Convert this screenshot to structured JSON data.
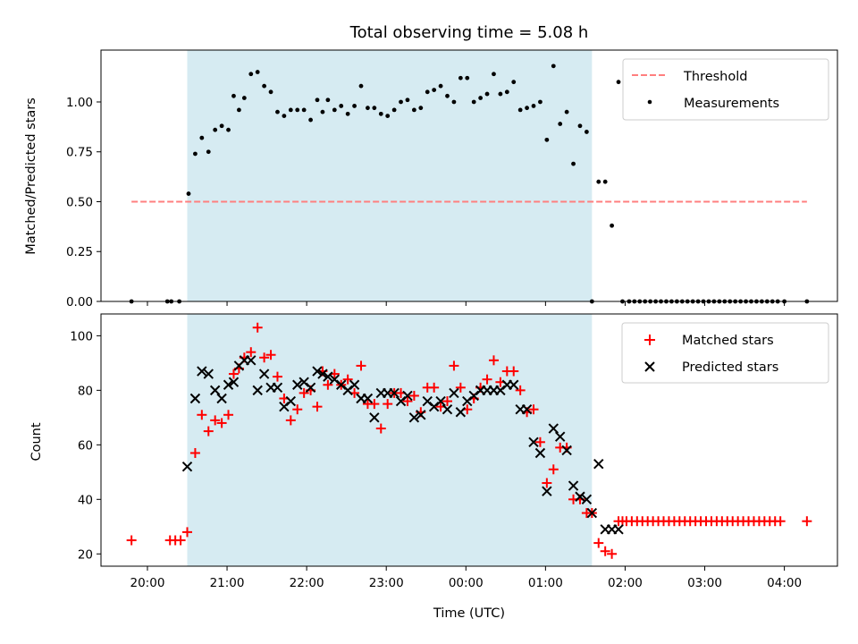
{
  "colors": {
    "observing_window": "#add8e6",
    "threshold": "#ff7f7f",
    "measurements": "#000000",
    "matched": "#ff0000",
    "predicted": "#000000"
  },
  "chart_data": [
    {
      "type": "scatter",
      "title": "Total observing time = 5.08 h",
      "xlabel": "",
      "ylabel": "Matched/Predicted stars",
      "xlim": [
        "19:25",
        "04:40"
      ],
      "ylim": [
        0,
        1.26
      ],
      "yticks": [
        0.0,
        0.25,
        0.5,
        0.75,
        1.0
      ],
      "ytick_labels": [
        "0.00",
        "0.25",
        "0.50",
        "0.75",
        "1.00"
      ],
      "observing_window": [
        "20:30",
        "01:35"
      ],
      "grid": false,
      "legend_position": "upper right",
      "threshold": {
        "name": "Threshold",
        "value": 0.5,
        "x_range": [
          "19:48",
          "04:17"
        ],
        "style": "dashed"
      },
      "series": [
        {
          "name": "Measurements",
          "x": [
            "19:48",
            "20:15",
            "20:18",
            "20:24",
            "20:31",
            "20:36",
            "20:41",
            "20:46",
            "20:51",
            "20:56",
            "21:01",
            "21:05",
            "21:09",
            "21:13",
            "21:18",
            "21:23",
            "21:28",
            "21:33",
            "21:38",
            "21:43",
            "21:48",
            "21:53",
            "21:58",
            "22:03",
            "22:08",
            "22:12",
            "22:16",
            "22:21",
            "22:26",
            "22:31",
            "22:36",
            "22:41",
            "22:46",
            "22:51",
            "22:56",
            "23:01",
            "23:06",
            "23:11",
            "23:16",
            "23:21",
            "23:26",
            "23:31",
            "23:36",
            "23:41",
            "23:46",
            "23:51",
            "23:56",
            "00:01",
            "00:06",
            "00:11",
            "00:16",
            "00:21",
            "00:26",
            "00:31",
            "00:36",
            "00:41",
            "00:46",
            "00:51",
            "00:56",
            "01:01",
            "01:06",
            "01:11",
            "01:16",
            "01:21",
            "01:26",
            "01:31",
            "01:35",
            "01:40",
            "01:45",
            "01:50",
            "01:55",
            "01:58",
            "02:03",
            "02:07",
            "02:11",
            "02:15",
            "02:19",
            "02:23",
            "02:27",
            "02:31",
            "02:35",
            "02:39",
            "02:43",
            "02:47",
            "02:51",
            "02:55",
            "02:59",
            "03:03",
            "03:07",
            "03:11",
            "03:15",
            "03:19",
            "03:23",
            "03:27",
            "03:31",
            "03:35",
            "03:39",
            "03:43",
            "03:47",
            "03:51",
            "03:55",
            "04:00",
            "04:17"
          ],
          "y": [
            0.0,
            0.0,
            0.0,
            0.0,
            0.54,
            0.74,
            0.82,
            0.75,
            0.86,
            0.88,
            0.86,
            1.03,
            0.96,
            1.02,
            1.14,
            1.15,
            1.08,
            1.05,
            0.95,
            0.93,
            0.96,
            0.96,
            0.96,
            0.91,
            1.01,
            0.95,
            1.01,
            0.96,
            0.98,
            0.94,
            0.98,
            1.08,
            0.97,
            0.97,
            0.94,
            0.93,
            0.96,
            1.0,
            1.01,
            0.96,
            0.97,
            1.05,
            1.06,
            1.08,
            1.03,
            1.0,
            1.12,
            1.12,
            1.0,
            1.02,
            1.04,
            1.14,
            1.04,
            1.05,
            1.1,
            0.96,
            0.97,
            0.98,
            1.0,
            0.81,
            1.18,
            0.89,
            0.95,
            0.69,
            0.88,
            0.85,
            0.0,
            0.6,
            0.6,
            0.38,
            1.1,
            0.0,
            0.0,
            0.0,
            0.0,
            0.0,
            0.0,
            0.0,
            0.0,
            0.0,
            0.0,
            0.0,
            0.0,
            0.0,
            0.0,
            0.0,
            0.0,
            0.0,
            0.0,
            0.0,
            0.0,
            0.0,
            0.0,
            0.0,
            0.0,
            0.0,
            0.0,
            0.0,
            0.0,
            0.0,
            0.0,
            0.0,
            0.0
          ]
        }
      ]
    },
    {
      "type": "scatter",
      "title": "",
      "xlabel": "Time (UTC)",
      "ylabel": "Count",
      "xlim": [
        "19:25",
        "04:40"
      ],
      "ylim": [
        15.5,
        108
      ],
      "xticks": [
        "20:00",
        "21:00",
        "22:00",
        "23:00",
        "00:00",
        "01:00",
        "02:00",
        "03:00",
        "04:00"
      ],
      "yticks": [
        20,
        40,
        60,
        80,
        100
      ],
      "observing_window": [
        "20:30",
        "01:35"
      ],
      "grid": false,
      "legend_position": "upper right",
      "series": [
        {
          "name": "Matched stars",
          "marker": "+",
          "x": [
            "19:48",
            "20:17",
            "20:21",
            "20:25",
            "20:30",
            "20:36",
            "20:41",
            "20:46",
            "20:51",
            "20:56",
            "21:01",
            "21:05",
            "21:09",
            "21:13",
            "21:18",
            "21:23",
            "21:28",
            "21:33",
            "21:38",
            "21:43",
            "21:48",
            "21:53",
            "21:58",
            "22:03",
            "22:08",
            "22:12",
            "22:16",
            "22:21",
            "22:26",
            "22:31",
            "22:36",
            "22:41",
            "22:46",
            "22:51",
            "22:56",
            "23:01",
            "23:06",
            "23:11",
            "23:16",
            "23:21",
            "23:26",
            "23:31",
            "23:36",
            "23:41",
            "23:46",
            "23:51",
            "23:56",
            "00:01",
            "00:06",
            "00:11",
            "00:16",
            "00:21",
            "00:26",
            "00:31",
            "00:36",
            "00:41",
            "00:46",
            "00:51",
            "00:56",
            "01:01",
            "01:06",
            "01:11",
            "01:16",
            "01:21",
            "01:26",
            "01:31",
            "01:35",
            "01:40",
            "01:45",
            "01:50",
            "01:55",
            "01:58",
            "02:01",
            "02:05",
            "02:09",
            "02:13",
            "02:17",
            "02:21",
            "02:25",
            "02:29",
            "02:33",
            "02:37",
            "02:41",
            "02:45",
            "02:49",
            "02:53",
            "02:57",
            "03:01",
            "03:05",
            "03:09",
            "03:13",
            "03:17",
            "03:21",
            "03:25",
            "03:29",
            "03:33",
            "03:37",
            "03:41",
            "03:45",
            "03:49",
            "03:53",
            "03:57",
            "04:17"
          ],
          "y": [
            25,
            25,
            25,
            25,
            28,
            57,
            71,
            65,
            69,
            68,
            71,
            86,
            88,
            92,
            94,
            103,
            92,
            93,
            85,
            77,
            69,
            73,
            79,
            80,
            74,
            87,
            82,
            86,
            82,
            84,
            79,
            89,
            75,
            75,
            66,
            75,
            79,
            79,
            76,
            78,
            72,
            81,
            81,
            74,
            76,
            89,
            81,
            73,
            77,
            81,
            84,
            91,
            83,
            87,
            87,
            80,
            72,
            73,
            61,
            46,
            51,
            59,
            59,
            40,
            40,
            35,
            35,
            24,
            21,
            20,
            32,
            32,
            32,
            32,
            32,
            32,
            32,
            32,
            32,
            32,
            32,
            32,
            32,
            32,
            32,
            32,
            32,
            32,
            32,
            32,
            32,
            32,
            32,
            32,
            32,
            32,
            32,
            32,
            32,
            32,
            32,
            32,
            32
          ]
        },
        {
          "name": "Predicted stars",
          "marker": "x",
          "x": [
            "20:30",
            "20:36",
            "20:41",
            "20:46",
            "20:51",
            "20:56",
            "21:01",
            "21:05",
            "21:09",
            "21:13",
            "21:18",
            "21:23",
            "21:28",
            "21:33",
            "21:38",
            "21:43",
            "21:48",
            "21:53",
            "21:58",
            "22:03",
            "22:08",
            "22:12",
            "22:16",
            "22:21",
            "22:26",
            "22:31",
            "22:36",
            "22:41",
            "22:46",
            "22:51",
            "22:56",
            "23:01",
            "23:06",
            "23:11",
            "23:16",
            "23:21",
            "23:26",
            "23:31",
            "23:36",
            "23:41",
            "23:46",
            "23:51",
            "23:56",
            "00:01",
            "00:06",
            "00:11",
            "00:16",
            "00:21",
            "00:26",
            "00:31",
            "00:36",
            "00:41",
            "00:46",
            "00:51",
            "00:56",
            "01:01",
            "01:06",
            "01:11",
            "01:16",
            "01:21",
            "01:26",
            "01:31",
            "01:35",
            "01:40",
            "01:45",
            "01:50",
            "01:55"
          ],
          "y": [
            52,
            77,
            87,
            86,
            80,
            77,
            82,
            83,
            89,
            91,
            91,
            80,
            86,
            81,
            81,
            74,
            76,
            82,
            83,
            81,
            87,
            86,
            85,
            84,
            82,
            80,
            82,
            77,
            77,
            70,
            79,
            79,
            79,
            76,
            78,
            70,
            71,
            76,
            74,
            76,
            73,
            79,
            72,
            76,
            78,
            80,
            80,
            80,
            80,
            82,
            82,
            73,
            73,
            61,
            57,
            43,
            66,
            63,
            58,
            45,
            41,
            40,
            35,
            53,
            29,
            29,
            29
          ]
        }
      ]
    }
  ],
  "legend_top": [
    "Threshold",
    "Measurements"
  ],
  "legend_bottom": [
    "Matched stars",
    "Predicted stars"
  ]
}
